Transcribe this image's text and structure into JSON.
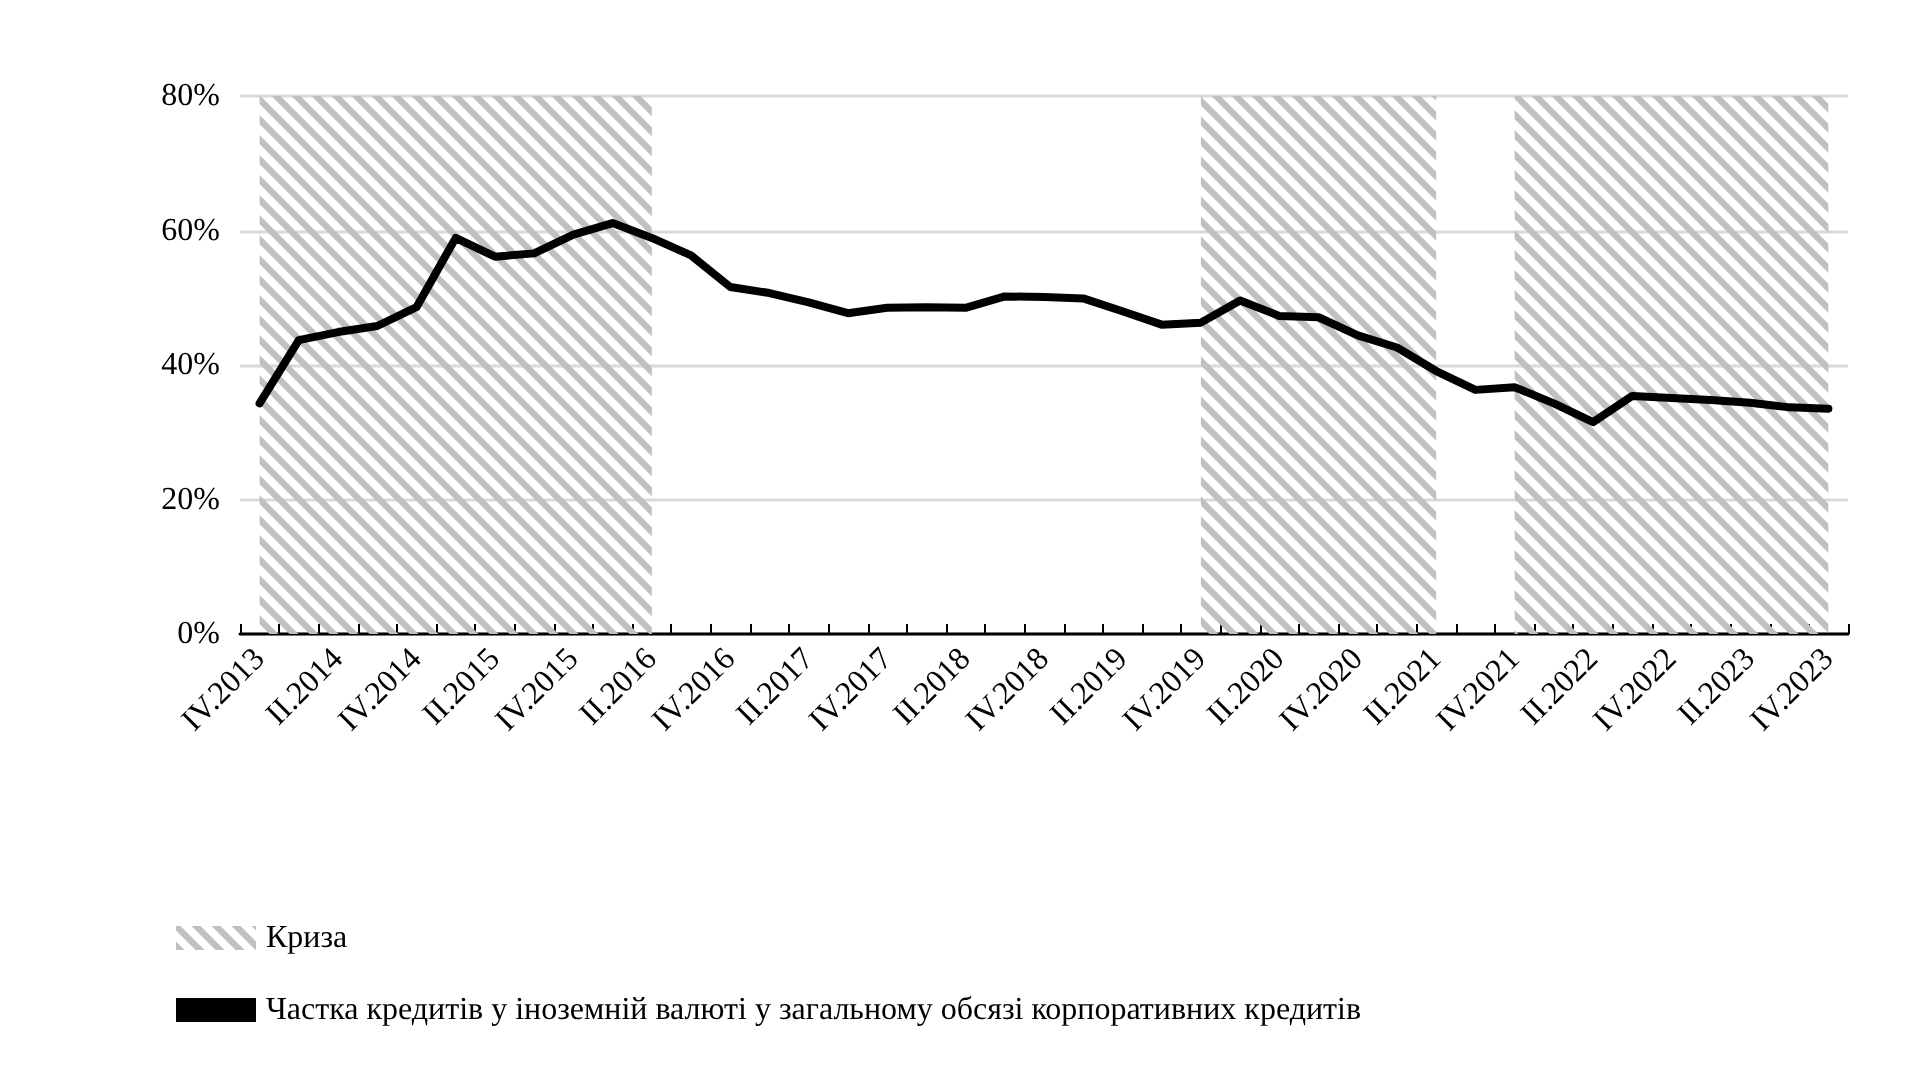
{
  "chart_data": {
    "type": "line",
    "categories": [
      "IV.2013",
      null,
      "II.2014",
      null,
      "IV.2014",
      null,
      "II.2015",
      null,
      "IV.2015",
      null,
      "II.2016",
      null,
      "IV.2016",
      null,
      "II.2017",
      null,
      "IV.2017",
      null,
      "II.2018",
      null,
      "IV.2018",
      null,
      "II.2019",
      null,
      "IV.2019",
      null,
      "II.2020",
      null,
      "IV.2020",
      null,
      "II.2021",
      null,
      "IV.2021",
      null,
      "II.2022",
      null,
      "IV.2022",
      null,
      "II.2023",
      null,
      "IV.2023"
    ],
    "series": [
      {
        "name": "Частка кредитів у іноземній валюті у загальному обсязі корпоративних кредитів",
        "color": "#000000",
        "values": [
          34.3,
          43.7,
          44.9,
          45.8,
          48.6,
          58.9,
          56.1,
          56.6,
          59.4,
          61.1,
          58.9,
          56.3,
          51.6,
          50.7,
          49.3,
          47.7,
          48.5,
          48.6,
          48.5,
          50.2,
          50.1,
          49.9,
          48.0,
          46.0,
          46.3,
          49.6,
          47.3,
          47.1,
          44.4,
          42.6,
          39.1,
          36.3,
          36.7,
          34.3,
          31.5,
          35.4,
          35.1,
          34.8,
          34.4,
          33.7,
          33.5
        ]
      }
    ],
    "ylim": [
      0,
      80
    ],
    "yticks": [
      {
        "value": 0,
        "label": "0%"
      },
      {
        "value": 20,
        "label": "20%"
      },
      {
        "value": 40,
        "label": "40%"
      },
      {
        "value": 60,
        "label": "60%"
      },
      {
        "value": 80,
        "label": "80%"
      }
    ],
    "grid": "y",
    "legend": "bottom left",
    "marker": "none",
    "line_style": "solid",
    "bands": [
      {
        "axis": "x",
        "from": "IV.2013",
        "to": "II.2016",
        "label": "Криза",
        "color": "#c0c0c0"
      },
      {
        "axis": "x",
        "from": "IV.2019",
        "to": "II.2021",
        "color": "#c0c0c0"
      },
      {
        "axis": "x",
        "from": "IV.2021",
        "to": "IV.2023",
        "color": "#c0c0c0"
      }
    ]
  }
}
